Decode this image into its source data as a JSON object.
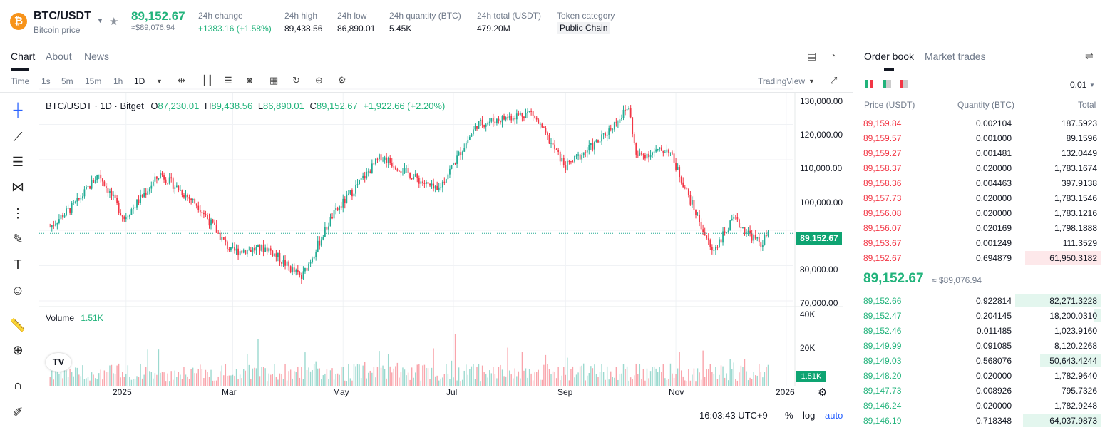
{
  "header": {
    "pair": "BTC/USDT",
    "subtitle": "Bitcoin price",
    "last_price": "89,152.67",
    "last_price_fiat": "≈$89,076.94",
    "stats": [
      {
        "label": "24h change",
        "value": "+1383.16 (+1.58%)",
        "color": "#21b37b"
      },
      {
        "label": "24h high",
        "value": "89,438.56"
      },
      {
        "label": "24h low",
        "value": "86,890.01"
      },
      {
        "label": "24h quantity (BTC)",
        "value": "5.45K"
      },
      {
        "label": "24h total (USDT)",
        "value": "479.20M"
      },
      {
        "label": "Token category",
        "value": "Public Chain"
      }
    ]
  },
  "chart_tabs": [
    "Chart",
    "About",
    "News"
  ],
  "toolbar": {
    "intervals": [
      "Time",
      "1s",
      "5m",
      "15m",
      "1h",
      "1D"
    ],
    "selected": "1D",
    "source": "TradingView"
  },
  "legend": {
    "symbol": "BTC/USDT · 1D · Bitget",
    "o_label": "O",
    "o": "87,230.01",
    "h_label": "H",
    "h": "89,438.56",
    "l_label": "L",
    "l": "86,890.01",
    "c_label": "C",
    "c": "89,152.67",
    "change": "+1,922.66 (+2.20%)"
  },
  "volume": {
    "label": "Volume",
    "value": "1.51K"
  },
  "price_tag": "89,152.67",
  "vol_tag": "1.51K",
  "y_axis": [
    "130,000.00",
    "120,000.00",
    "110,000.00",
    "100,000.00",
    "80,000.00",
    "70,000.00"
  ],
  "vol_axis": [
    "40K",
    "20K"
  ],
  "x_axis": [
    "2025",
    "Mar",
    "May",
    "Jul",
    "Sep",
    "Nov",
    "2026"
  ],
  "bottom": {
    "time": "16:03:43 UTC+9",
    "pct": "%",
    "log": "log",
    "auto": "auto"
  },
  "chart_data": {
    "type": "candlestick",
    "title": "BTC/USDT · 1D · Bitget",
    "ylim": [
      70000,
      130000
    ],
    "x_range": [
      "2024-11",
      "2026-01"
    ],
    "current_price": 89152.67,
    "close_path": [
      {
        "t": "2024-11-20",
        "v": 91000
      },
      {
        "t": "2024-12-05",
        "v": 98000
      },
      {
        "t": "2024-12-17",
        "v": 106000
      },
      {
        "t": "2024-12-31",
        "v": 93500
      },
      {
        "t": "2025-01-20",
        "v": 106000
      },
      {
        "t": "2025-02-10",
        "v": 97000
      },
      {
        "t": "2025-02-28",
        "v": 84000
      },
      {
        "t": "2025-03-20",
        "v": 85000
      },
      {
        "t": "2025-04-08",
        "v": 76500
      },
      {
        "t": "2025-04-25",
        "v": 94000
      },
      {
        "t": "2025-05-22",
        "v": 111000
      },
      {
        "t": "2025-06-22",
        "v": 101000
      },
      {
        "t": "2025-07-14",
        "v": 120000
      },
      {
        "t": "2025-08-13",
        "v": 123500
      },
      {
        "t": "2025-09-01",
        "v": 108000
      },
      {
        "t": "2025-09-20",
        "v": 115500
      },
      {
        "t": "2025-10-06",
        "v": 125000
      },
      {
        "t": "2025-10-10",
        "v": 111000
      },
      {
        "t": "2025-10-28",
        "v": 113000
      },
      {
        "t": "2025-11-21",
        "v": 84000
      },
      {
        "t": "2025-12-03",
        "v": 93000
      },
      {
        "t": "2025-12-18",
        "v": 86000
      },
      {
        "t": "2025-12-22",
        "v": 89152.67
      }
    ],
    "volume_max": 40000
  },
  "orderbook": {
    "tabs": [
      "Order book",
      "Market trades"
    ],
    "precision": "0.01",
    "headers": [
      "Price (USDT)",
      "Quantity (BTC)",
      "Total"
    ],
    "asks": [
      {
        "price": "89,159.84",
        "qty": "0.002104",
        "total": "187.5923",
        "depth": 0
      },
      {
        "price": "89,159.57",
        "qty": "0.001000",
        "total": "89.1596",
        "depth": 0
      },
      {
        "price": "89,159.27",
        "qty": "0.001481",
        "total": "132.0449",
        "depth": 0
      },
      {
        "price": "89,158.37",
        "qty": "0.020000",
        "total": "1,783.1674",
        "depth": 0
      },
      {
        "price": "89,158.36",
        "qty": "0.004463",
        "total": "397.9138",
        "depth": 0
      },
      {
        "price": "89,157.73",
        "qty": "0.020000",
        "total": "1,783.1546",
        "depth": 0
      },
      {
        "price": "89,156.08",
        "qty": "0.020000",
        "total": "1,783.1216",
        "depth": 0
      },
      {
        "price": "89,156.07",
        "qty": "0.020169",
        "total": "1,798.1888",
        "depth": 0
      },
      {
        "price": "89,153.67",
        "qty": "0.001249",
        "total": "111.3529",
        "depth": 0
      },
      {
        "price": "89,152.67",
        "qty": "0.694879",
        "total": "61,950.3182",
        "depth": 0.31
      }
    ],
    "mid_price": "89,152.67",
    "mid_fiat": "≈ $89,076.94",
    "bids": [
      {
        "price": "89,152.66",
        "qty": "0.922814",
        "total": "82,271.3228",
        "depth": 0.35
      },
      {
        "price": "89,152.47",
        "qty": "0.204145",
        "total": "18,200.0310",
        "depth": 0.03
      },
      {
        "price": "89,152.46",
        "qty": "0.011485",
        "total": "1,023.9160",
        "depth": 0
      },
      {
        "price": "89,149.99",
        "qty": "0.091085",
        "total": "8,120.2268",
        "depth": 0
      },
      {
        "price": "89,149.03",
        "qty": "0.568076",
        "total": "50,643.4244",
        "depth": 0.25
      },
      {
        "price": "89,148.20",
        "qty": "0.020000",
        "total": "1,782.9640",
        "depth": 0
      },
      {
        "price": "89,147.73",
        "qty": "0.008926",
        "total": "795.7326",
        "depth": 0
      },
      {
        "price": "89,146.24",
        "qty": "0.020000",
        "total": "1,782.9248",
        "depth": 0
      },
      {
        "price": "89,146.19",
        "qty": "0.718348",
        "total": "64,037.9873",
        "depth": 0.32
      }
    ]
  }
}
